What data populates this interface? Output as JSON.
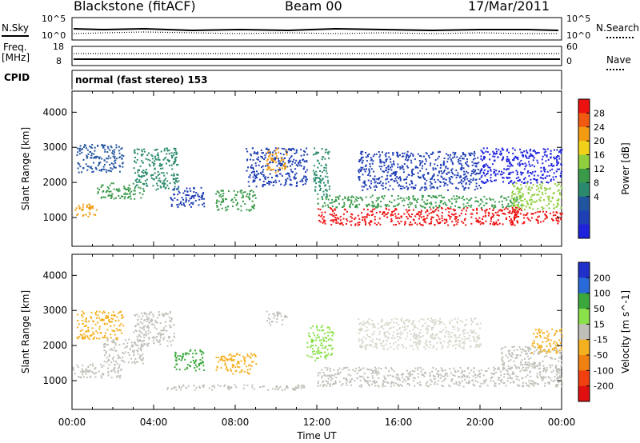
{
  "header": {
    "station": "Blackstone (fitACF)",
    "beam": "Beam 00",
    "date": "17/Mar/2011"
  },
  "status_panels": {
    "nsky_label": "N.Sky",
    "nsearch_label": "N.Search",
    "freq_label_1": "Freq.",
    "freq_label_2": "[MHz]",
    "nave_label": "Nave",
    "cpid_label": "CPID",
    "cpid_text": "normal (fast stereo) 153",
    "noise_ticks_left": [
      "10^5",
      "10^0"
    ],
    "noise_ticks_right": [
      "10^5",
      "10^0"
    ],
    "freq_ticks": [
      "18",
      "8"
    ],
    "nave_ticks": [
      "60",
      "0"
    ]
  },
  "chart_data": [
    {
      "type": "heatmap",
      "panel": "power",
      "ylabel": "Slant Range [km]",
      "ylim": [
        180,
        4600
      ],
      "yticks": [
        "1000",
        "2000",
        "3000",
        "4000"
      ],
      "xlim": [
        0,
        24
      ],
      "colorbar": {
        "label": "Power [dB]",
        "ticks": [
          "28",
          "24",
          "20",
          "16",
          "12",
          "8",
          "4"
        ],
        "colors": [
          "#ee1111",
          "#f05a10",
          "#f39c12",
          "#f2d11a",
          "#8fce3c",
          "#3a9a4a",
          "#2b8a6e",
          "#2255a0",
          "#1f3fb4",
          "#1e22dd"
        ]
      },
      "regions": [
        {
          "t0": 0.0,
          "t1": 1.2,
          "r0": 1050,
          "r1": 1400,
          "color": "#f39c12"
        },
        {
          "t0": 1.2,
          "t1": 3.5,
          "r0": 1550,
          "r1": 2000,
          "color": "#3a9a4a"
        },
        {
          "t0": 0.2,
          "t1": 2.5,
          "r0": 2300,
          "r1": 3100,
          "color": "#2255a0"
        },
        {
          "t0": 3.0,
          "t1": 5.2,
          "r0": 1800,
          "r1": 3000,
          "color": "#2b8a6e"
        },
        {
          "t0": 4.8,
          "t1": 6.5,
          "r0": 1300,
          "r1": 1900,
          "color": "#1f3fb4"
        },
        {
          "t0": 7.0,
          "t1": 9.0,
          "r0": 1200,
          "r1": 1800,
          "color": "#3a9a4a"
        },
        {
          "t0": 8.5,
          "t1": 11.5,
          "r0": 1900,
          "r1": 3000,
          "color": "#1f3fb4"
        },
        {
          "t0": 9.5,
          "t1": 10.5,
          "r0": 2300,
          "r1": 3000,
          "color": "#f39c12"
        },
        {
          "t0": 11.8,
          "t1": 12.6,
          "r0": 1600,
          "r1": 3000,
          "color": "#2b8a6e"
        },
        {
          "t0": 12.0,
          "t1": 22.0,
          "r0": 800,
          "r1": 1300,
          "color": "#ee1111"
        },
        {
          "t0": 12.0,
          "t1": 22.0,
          "r0": 1300,
          "r1": 1650,
          "color": "#3a9a4a"
        },
        {
          "t0": 21.5,
          "t1": 24.0,
          "r0": 850,
          "r1": 1200,
          "color": "#ee1111"
        },
        {
          "t0": 21.5,
          "t1": 24.0,
          "r0": 1250,
          "r1": 2000,
          "color": "#8fce3c"
        },
        {
          "t0": 14.0,
          "t1": 20.0,
          "r0": 1800,
          "r1": 2900,
          "color": "#1f3fb4"
        },
        {
          "t0": 20.0,
          "t1": 24.0,
          "r0": 2000,
          "r1": 3000,
          "color": "#1e22dd"
        }
      ]
    },
    {
      "type": "heatmap",
      "panel": "velocity",
      "xlabel": "Time UT",
      "ylabel": "Slant Range [km]",
      "ylim": [
        180,
        4600
      ],
      "yticks": [
        "1000",
        "2000",
        "3000",
        "4000"
      ],
      "xlim": [
        0,
        24
      ],
      "xticks": [
        "00:00",
        "04:00",
        "08:00",
        "12:00",
        "16:00",
        "20:00",
        "00:00"
      ],
      "colorbar": {
        "label": "Velocity [m s^-1]",
        "ticks": [
          "200",
          "100",
          "50",
          "15",
          "-15",
          "-50",
          "-100",
          "-200"
        ],
        "colors": [
          "#2030c8",
          "#2a6ad8",
          "#3aa83a",
          "#8ae04a",
          "#c0c0b8",
          "#f5b020",
          "#f08010",
          "#f04010",
          "#e01010"
        ]
      },
      "regions": [
        {
          "t0": 0.0,
          "t1": 2.5,
          "r0": 1100,
          "r1": 1500,
          "color": "#c0c0b8"
        },
        {
          "t0": 1.5,
          "t1": 3.5,
          "r0": 1500,
          "r1": 2200,
          "color": "#c0c0b8"
        },
        {
          "t0": 0.2,
          "t1": 2.5,
          "r0": 2200,
          "r1": 3000,
          "color": "#f5b020"
        },
        {
          "t0": 3.0,
          "t1": 5.0,
          "r0": 2000,
          "r1": 3000,
          "color": "#c0c0b8"
        },
        {
          "t0": 5.0,
          "t1": 6.5,
          "r0": 1300,
          "r1": 1900,
          "color": "#3aa83a"
        },
        {
          "t0": 7.0,
          "t1": 9.0,
          "r0": 1200,
          "r1": 1800,
          "color": "#f5b020"
        },
        {
          "t0": 4.5,
          "t1": 11.5,
          "r0": 750,
          "r1": 900,
          "color": "#c0c0b8"
        },
        {
          "t0": 9.5,
          "t1": 10.5,
          "r0": 2600,
          "r1": 3000,
          "color": "#c0c0b8"
        },
        {
          "t0": 11.5,
          "t1": 12.8,
          "r0": 1600,
          "r1": 2600,
          "color": "#8ae04a"
        },
        {
          "t0": 12.0,
          "t1": 24.0,
          "r0": 850,
          "r1": 1400,
          "color": "#c0c0b8"
        },
        {
          "t0": 21.0,
          "t1": 24.0,
          "r0": 1300,
          "r1": 2000,
          "color": "#c0c0b8"
        },
        {
          "t0": 22.5,
          "t1": 24.0,
          "r0": 1800,
          "r1": 2500,
          "color": "#f5b020"
        },
        {
          "t0": 14.0,
          "t1": 20.0,
          "r0": 1900,
          "r1": 2800,
          "color": "#d8d8cc"
        }
      ]
    }
  ]
}
